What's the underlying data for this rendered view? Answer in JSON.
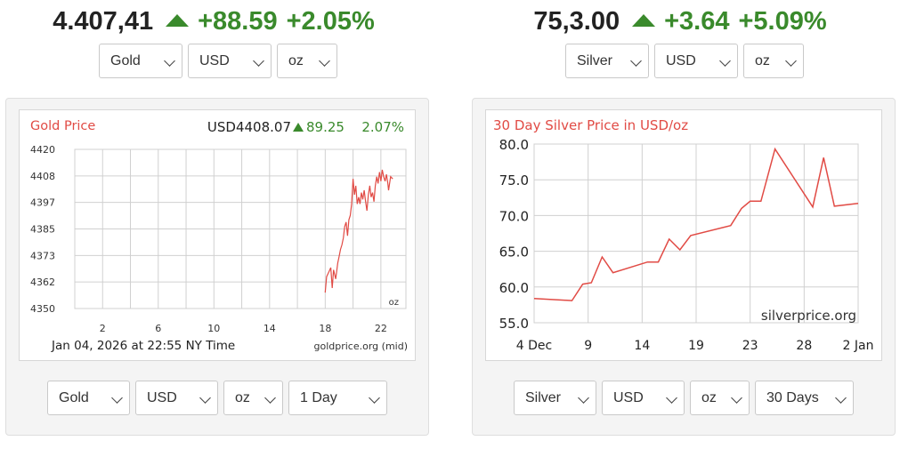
{
  "gold": {
    "quote": {
      "price": "4.407,41",
      "change": "+88.59",
      "change_pct": "+2.05%"
    },
    "top_selects": {
      "metal": "Gold",
      "currency": "USD",
      "unit": "oz"
    },
    "chart_data": {
      "type": "line",
      "title": "Gold Price",
      "readout": {
        "price": "USD4408.07",
        "change": "89.25",
        "change_pct": "2.07%"
      },
      "y_ticks": [
        "4420",
        "4408",
        "4397",
        "4385",
        "4373",
        "4362",
        "4350"
      ],
      "x_ticks": [
        "2",
        "6",
        "10",
        "14",
        "18",
        "22"
      ],
      "ylim": [
        4350,
        4420
      ],
      "xlim": [
        0,
        23.8
      ],
      "unit_label": "oz",
      "timestamp": "Jan 04, 2026 at 22:55 NY Time",
      "source": "goldprice.org (mid)",
      "series": [
        {
          "values": [
            [
              18.0,
              4357
            ],
            [
              18.1,
              4364
            ],
            [
              18.25,
              4366
            ],
            [
              18.4,
              4368
            ],
            [
              18.5,
              4359
            ],
            [
              18.6,
              4367
            ],
            [
              18.75,
              4363
            ],
            [
              18.9,
              4370
            ],
            [
              19.0,
              4373
            ],
            [
              19.1,
              4376
            ],
            [
              19.2,
              4378
            ],
            [
              19.3,
              4381
            ],
            [
              19.4,
              4386
            ],
            [
              19.5,
              4388
            ],
            [
              19.6,
              4382
            ],
            [
              19.7,
              4389
            ],
            [
              19.8,
              4391
            ],
            [
              19.9,
              4396
            ],
            [
              20.0,
              4407
            ],
            [
              20.1,
              4400
            ],
            [
              20.2,
              4404
            ],
            [
              20.3,
              4396
            ],
            [
              20.4,
              4399
            ],
            [
              20.5,
              4396
            ],
            [
              20.6,
              4401
            ],
            [
              20.7,
              4398
            ],
            [
              20.8,
              4402
            ],
            [
              20.9,
              4397
            ],
            [
              21.0,
              4393
            ],
            [
              21.1,
              4400
            ],
            [
              21.2,
              4404
            ],
            [
              21.3,
              4399
            ],
            [
              21.4,
              4401
            ],
            [
              21.5,
              4397
            ],
            [
              21.6,
              4404
            ],
            [
              21.7,
              4408
            ],
            [
              21.8,
              4405
            ],
            [
              21.9,
              4410
            ],
            [
              22.0,
              4406
            ],
            [
              22.1,
              4411
            ],
            [
              22.2,
              4408
            ],
            [
              22.3,
              4406
            ],
            [
              22.4,
              4409
            ],
            [
              22.5,
              4405
            ],
            [
              22.55,
              4402
            ],
            [
              22.7,
              4408
            ],
            [
              22.85,
              4407
            ]
          ]
        }
      ],
      "colors": {
        "line": "#e14b45",
        "title": "#e14b45",
        "up": "#3a8a2c",
        "grid": "#d0d0d0"
      }
    },
    "bottom_selects": {
      "metal": "Gold",
      "currency": "USD",
      "unit": "oz",
      "range": "1 Day"
    }
  },
  "silver": {
    "quote": {
      "price": "75,3.00",
      "change": "+3.64",
      "change_pct": "+5.09%"
    },
    "top_selects": {
      "metal": "Silver",
      "currency": "USD",
      "unit": "oz"
    },
    "chart_data": {
      "type": "line",
      "title": "30 Day Silver Price in USD/oz",
      "y_ticks": [
        "80.0",
        "75.0",
        "70.0",
        "65.0",
        "60.0",
        "55.0"
      ],
      "x_ticks": [
        "4 Dec",
        "9",
        "14",
        "19",
        "23",
        "28",
        "2 Jan"
      ],
      "ylim": [
        55,
        80
      ],
      "xlim": [
        0,
        30
      ],
      "watermark": "silverprice.org",
      "series": [
        {
          "values": [
            [
              0,
              58.4
            ],
            [
              3.5,
              58.1
            ],
            [
              4.5,
              60.4
            ],
            [
              5.3,
              60.6
            ],
            [
              6.3,
              64.2
            ],
            [
              7.3,
              62.0
            ],
            [
              10.5,
              63.5
            ],
            [
              11.5,
              63.5
            ],
            [
              12.5,
              66.7
            ],
            [
              13.5,
              65.2
            ],
            [
              14.5,
              67.2
            ],
            [
              18.2,
              68.6
            ],
            [
              19.2,
              71.0
            ],
            [
              20.0,
              72.0
            ],
            [
              21.0,
              72.0
            ],
            [
              22.3,
              79.3
            ],
            [
              25.8,
              71.2
            ],
            [
              26.8,
              78.1
            ],
            [
              27.8,
              71.3
            ],
            [
              30.0,
              71.7
            ]
          ]
        }
      ],
      "colors": {
        "line": "#e14b45",
        "title": "#e14b45",
        "grid": "#d0d0d0"
      }
    },
    "bottom_selects": {
      "metal": "Silver",
      "currency": "USD",
      "unit": "oz",
      "range": "30 Days"
    }
  }
}
